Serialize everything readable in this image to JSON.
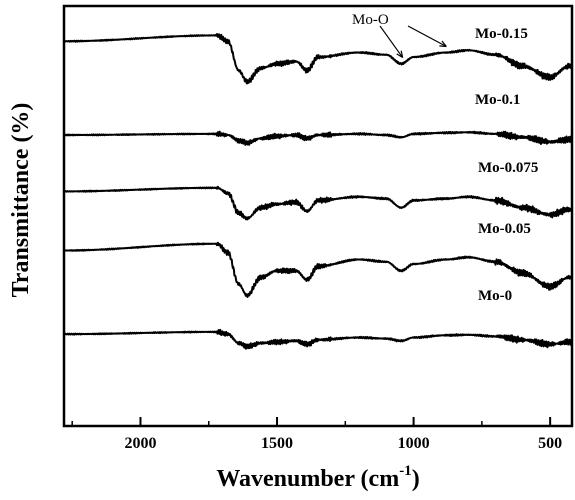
{
  "chart_data": {
    "type": "line",
    "xlabel": "Wavenumber (cm",
    "xlabel_sup": "-1",
    "xlabel_close": ")",
    "ylabel": "Transmittance (%)",
    "xlim": [
      2280,
      420
    ],
    "x_ticks": [
      2000,
      1500,
      1000,
      500
    ],
    "x_tick_labels": [
      "2000",
      "1500",
      "1000",
      "500"
    ],
    "y_axis_values_shown": false,
    "annotation": {
      "text": "Mo-O",
      "points_to_wavenumber": [
        1040,
        880
      ]
    },
    "feature_wavenumbers": {
      "water_bend": 1630,
      "nitrate_or_carbonate": 1385,
      "mo_o_stretch_1": 1040,
      "mo_o_stretch_2": 880
    },
    "series": [
      {
        "name": "Mo-0.15",
        "offset": 4.0,
        "band_depth": 1.0,
        "x": [
          2280,
          1720,
          1680,
          1640,
          1610,
          1560,
          1500,
          1430,
          1390,
          1350,
          1200,
          1100,
          1045,
          1000,
          880,
          800,
          700,
          600,
          500,
          430
        ],
        "y": [
          0.55,
          0.68,
          0.55,
          -0.1,
          -0.35,
          -0.05,
          0.05,
          0.1,
          -0.1,
          0.2,
          0.3,
          0.25,
          0.05,
          0.2,
          0.3,
          0.35,
          0.25,
          0.0,
          -0.25,
          0.0
        ]
      },
      {
        "name": "Mo-0.1",
        "offset": 3.0,
        "band_depth": 0.5,
        "x": [
          2280,
          1720,
          1680,
          1640,
          1610,
          1560,
          1500,
          1430,
          1390,
          1350,
          1200,
          1100,
          1045,
          1000,
          880,
          800,
          700,
          600,
          500,
          430
        ],
        "y": [
          0.0,
          0.05,
          0.0,
          -0.25,
          -0.35,
          -0.15,
          -0.05,
          0.0,
          -0.15,
          0.0,
          0.05,
          0.0,
          -0.1,
          0.05,
          0.1,
          0.12,
          0.05,
          -0.1,
          -0.3,
          -0.2
        ]
      },
      {
        "name": "Mo-0.075",
        "offset": 2.0,
        "band_depth": 0.8,
        "x": [
          2280,
          1720,
          1680,
          1640,
          1610,
          1560,
          1500,
          1430,
          1390,
          1350,
          1200,
          1100,
          1045,
          1000,
          880,
          800,
          700,
          600,
          500,
          430
        ],
        "y": [
          0.35,
          0.45,
          0.3,
          -0.25,
          -0.4,
          -0.1,
          0.0,
          0.05,
          -0.2,
          0.1,
          0.2,
          0.15,
          -0.1,
          0.1,
          0.15,
          0.2,
          0.1,
          -0.1,
          -0.3,
          -0.15
        ]
      },
      {
        "name": "Mo-0.05",
        "offset": 1.0,
        "band_depth": 1.0,
        "x": [
          2280,
          1720,
          1680,
          1640,
          1610,
          1560,
          1500,
          1430,
          1390,
          1350,
          1200,
          1100,
          1045,
          1000,
          880,
          800,
          700,
          600,
          500,
          430
        ],
        "y": [
          0.5,
          0.65,
          0.45,
          -0.25,
          -0.5,
          -0.1,
          0.05,
          0.05,
          -0.15,
          0.15,
          0.3,
          0.25,
          0.05,
          0.2,
          0.3,
          0.35,
          0.25,
          0.0,
          -0.3,
          -0.1
        ]
      },
      {
        "name": "Mo-0",
        "offset": 0.0,
        "band_depth": 0.5,
        "x": [
          2280,
          1720,
          1680,
          1640,
          1610,
          1560,
          1500,
          1430,
          1390,
          1350,
          1200,
          1100,
          1045,
          1000,
          880,
          800,
          700,
          600,
          500,
          430
        ],
        "y": [
          0.35,
          0.45,
          0.35,
          -0.05,
          -0.2,
          -0.05,
          0.0,
          0.05,
          -0.1,
          0.1,
          0.2,
          0.15,
          0.05,
          0.2,
          0.3,
          0.32,
          0.25,
          0.1,
          -0.1,
          0.0
        ]
      }
    ]
  }
}
